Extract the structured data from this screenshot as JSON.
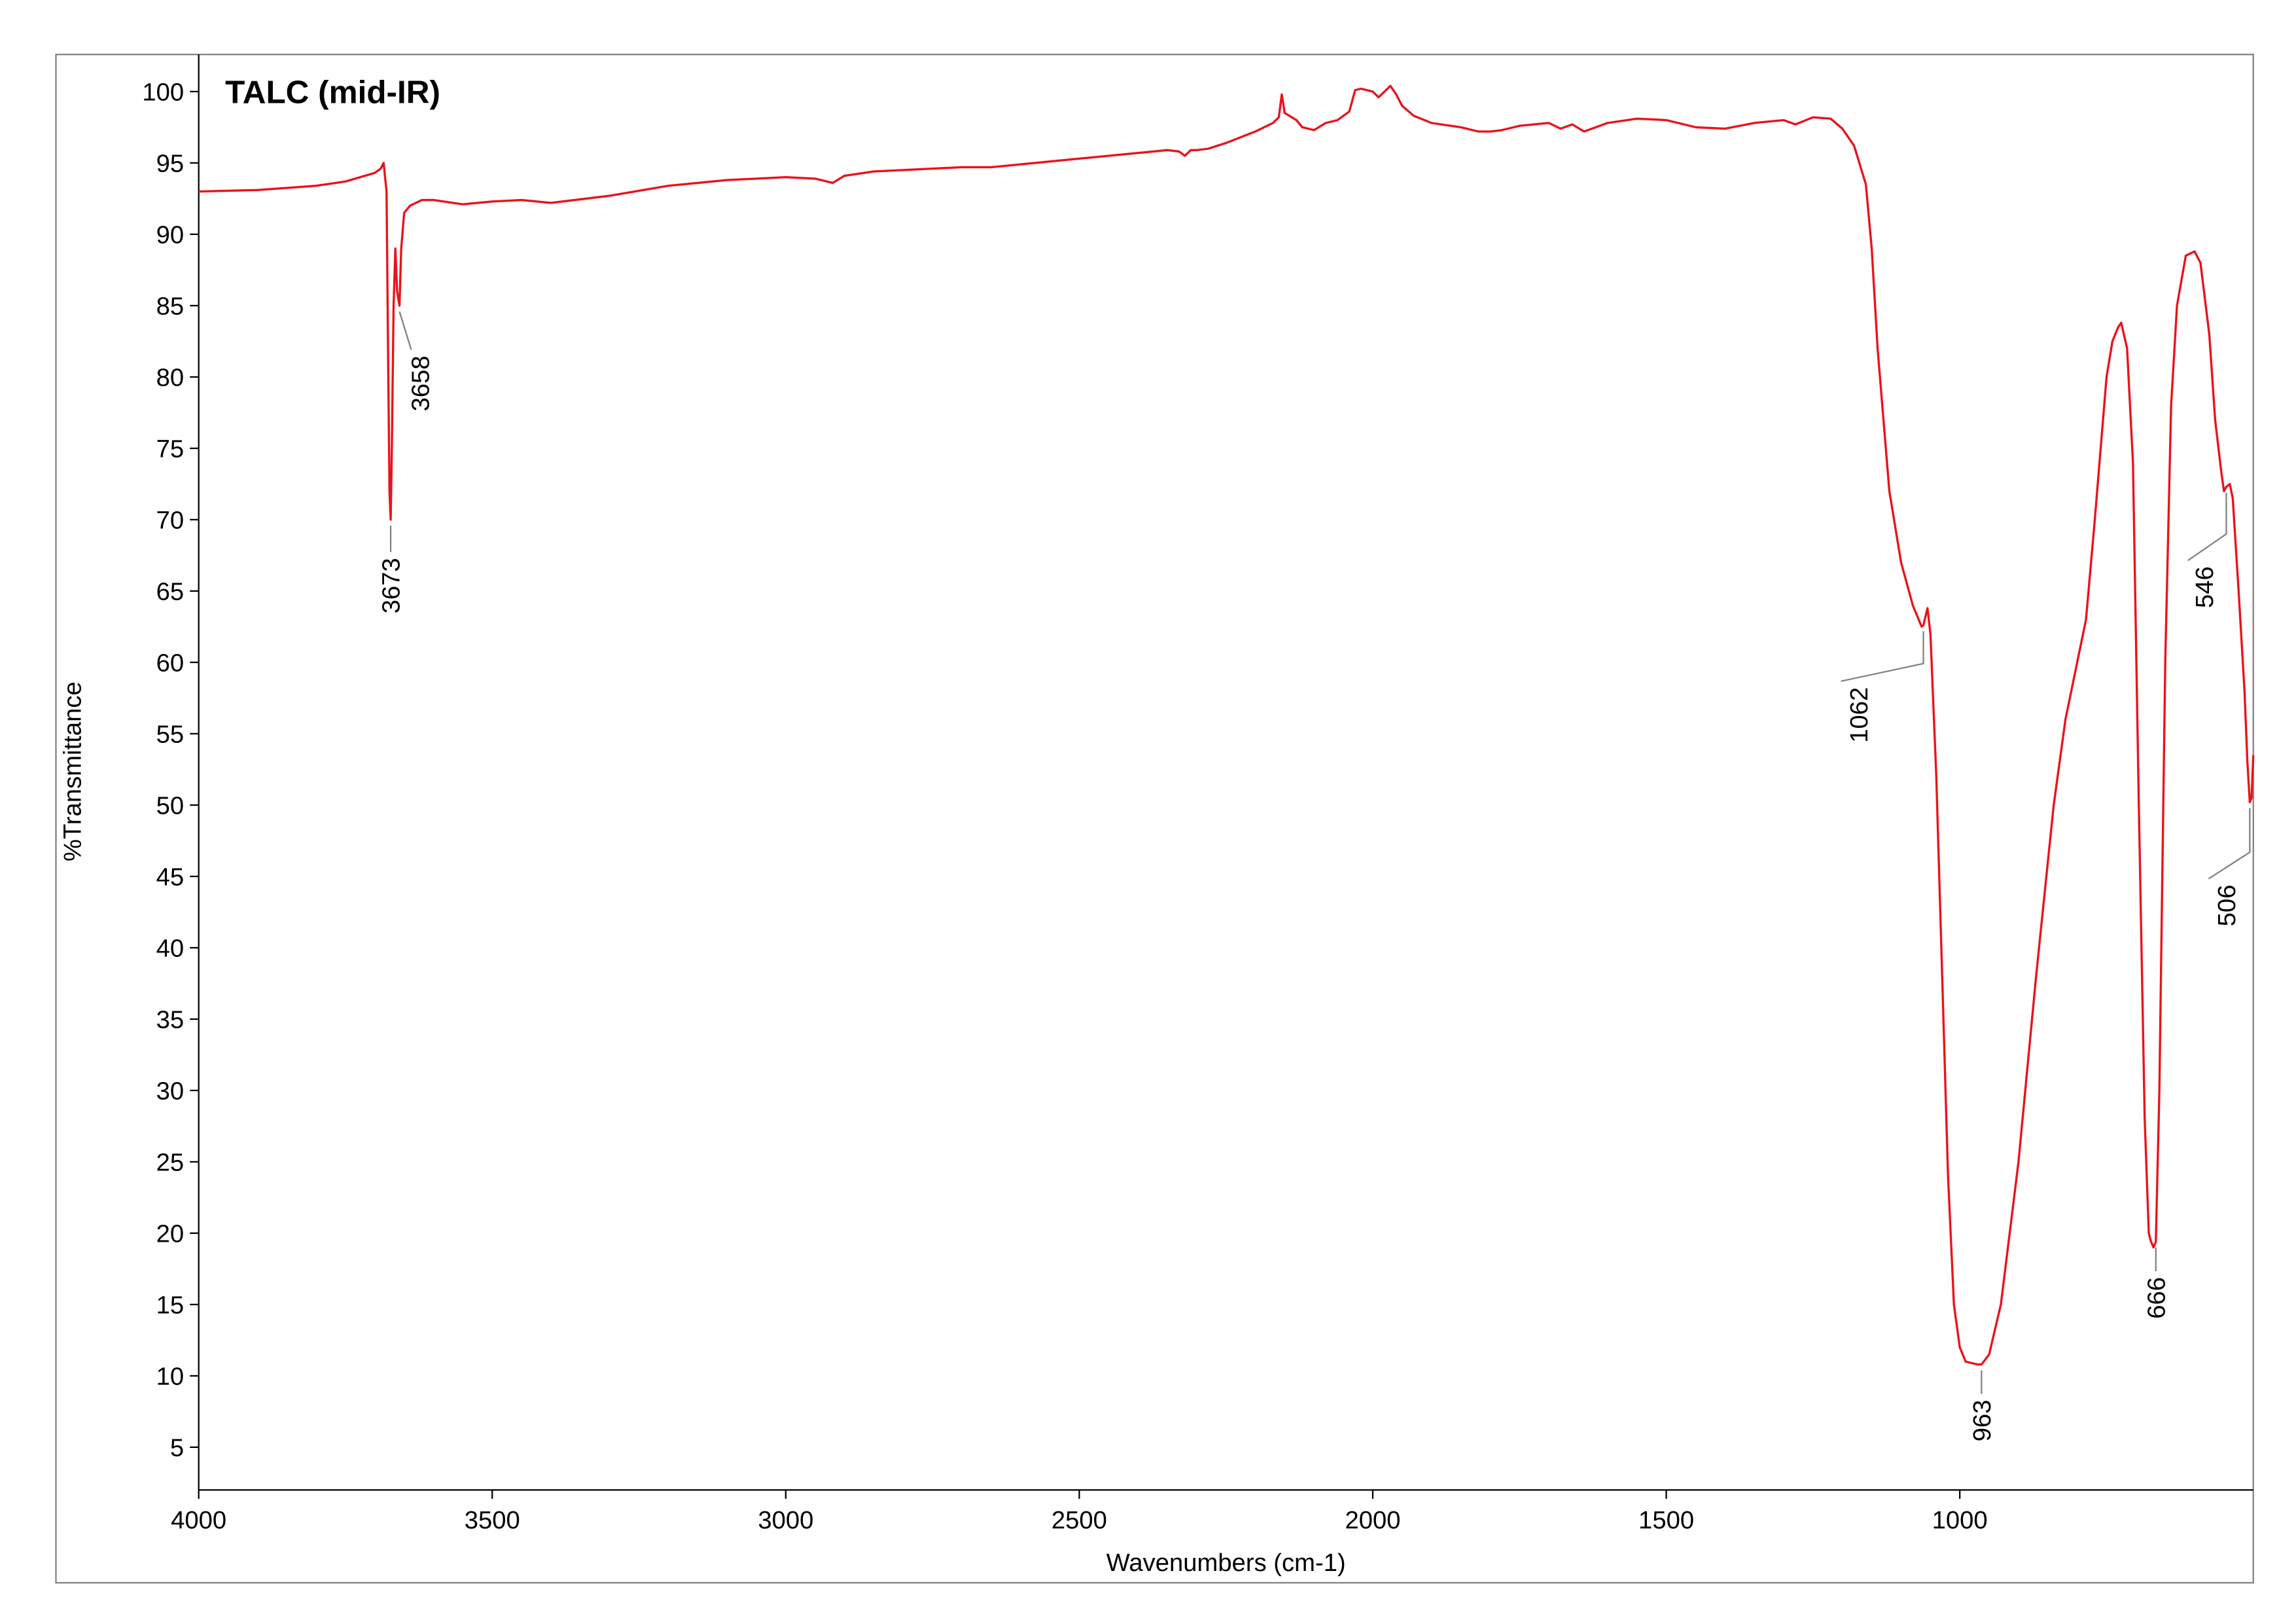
{
  "chart_data": {
    "type": "line",
    "title": "TALC (mid-IR)",
    "xlabel": "Wavenumbers (cm-1)",
    "ylabel": "%Transmittance",
    "xlim": [
      4000,
      500
    ],
    "ylim": [
      2,
      102.6
    ],
    "xticks": [
      4000,
      3500,
      3000,
      2500,
      2000,
      1500,
      1000
    ],
    "yticks": [
      5,
      10,
      15,
      20,
      25,
      30,
      35,
      40,
      45,
      50,
      55,
      60,
      65,
      70,
      75,
      80,
      85,
      90,
      95,
      100
    ],
    "x": [
      4000,
      3900,
      3800,
      3750,
      3700,
      3690,
      3685,
      3680,
      3677,
      3675,
      3673,
      3671,
      3668,
      3665,
      3662,
      3658,
      3655,
      3650,
      3640,
      3620,
      3600,
      3550,
      3500,
      3450,
      3400,
      3300,
      3200,
      3100,
      3000,
      2950,
      2920,
      2900,
      2850,
      2800,
      2700,
      2650,
      2600,
      2500,
      2400,
      2350,
      2330,
      2320,
      2310,
      2300,
      2280,
      2250,
      2200,
      2170,
      2160,
      2155,
      2150,
      2130,
      2120,
      2100,
      2080,
      2060,
      2040,
      2030,
      2020,
      2000,
      1990,
      1980,
      1970,
      1960,
      1950,
      1930,
      1900,
      1850,
      1820,
      1800,
      1780,
      1750,
      1700,
      1680,
      1660,
      1640,
      1600,
      1550,
      1500,
      1450,
      1400,
      1350,
      1300,
      1280,
      1250,
      1220,
      1200,
      1180,
      1160,
      1150,
      1140,
      1130,
      1120,
      1100,
      1080,
      1065,
      1062,
      1055,
      1050,
      1040,
      1030,
      1020,
      1010,
      1000,
      990,
      970,
      963,
      950,
      930,
      900,
      870,
      840,
      820,
      800,
      785,
      770,
      760,
      750,
      740,
      730,
      725,
      715,
      705,
      695,
      685,
      678,
      675,
      670,
      666,
      660,
      650,
      640,
      630,
      615,
      600,
      590,
      575,
      565,
      555,
      550,
      546,
      540,
      535,
      525,
      515,
      510,
      506,
      503,
      500
    ],
    "series": [
      {
        "name": "TALC",
        "color": "#e8141b",
        "values": [
          93,
          93.1,
          93.4,
          93.7,
          94.3,
          94.6,
          95.0,
          93,
          80,
          72,
          70,
          75,
          85,
          89,
          86,
          85,
          89,
          91.5,
          92,
          92.4,
          92.4,
          92.1,
          92.3,
          92.4,
          92.2,
          92.7,
          93.4,
          93.8,
          94,
          93.9,
          93.6,
          94.1,
          94.4,
          94.5,
          94.7,
          94.7,
          94.9,
          95.3,
          95.7,
          95.9,
          95.8,
          95.5,
          95.9,
          95.9,
          96.0,
          96.4,
          97.2,
          97.8,
          98.2,
          99.8,
          98.5,
          98,
          97.5,
          97.3,
          97.8,
          98,
          98.6,
          100.1,
          100.2,
          100,
          99.6,
          100,
          100.4,
          99.8,
          99,
          98.3,
          97.8,
          97.5,
          97.2,
          97.2,
          97.3,
          97.6,
          97.8,
          97.4,
          97.7,
          97.2,
          97.8,
          98.1,
          98,
          97.5,
          97.4,
          97.8,
          98,
          97.7,
          98.2,
          98.1,
          97.4,
          96.2,
          93.5,
          89,
          82,
          77,
          72,
          67,
          64,
          62.5,
          62.6,
          63.8,
          62,
          52,
          38,
          24,
          15,
          12,
          11,
          10.8,
          10.8,
          11.5,
          15,
          25,
          38,
          50,
          56,
          60,
          63,
          70,
          75,
          80,
          82.5,
          83.5,
          83.8,
          82,
          74,
          50,
          28,
          20,
          19.5,
          19,
          19.4,
          30,
          60,
          78,
          85,
          88.5,
          88.8,
          88,
          83,
          77,
          73.5,
          72,
          72.3,
          72.5,
          71.5,
          65,
          58,
          53,
          50.2,
          50.5,
          53.5
        ]
      }
    ],
    "peaks": [
      3673,
      3658,
      1062,
      963,
      666,
      546,
      506
    ]
  }
}
